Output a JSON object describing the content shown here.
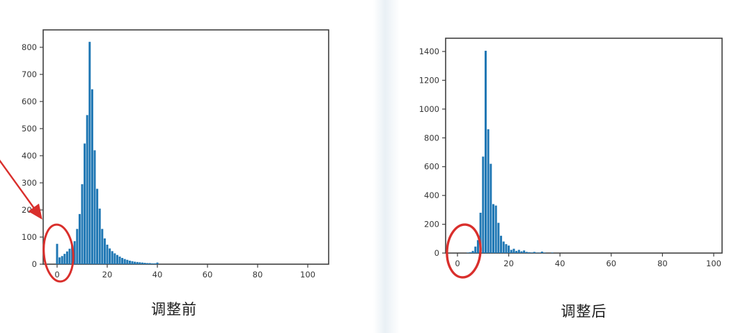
{
  "page": {
    "background": "#ffffff",
    "description": "Two histogram screenshots side by side comparing a distribution before and after adjustment, annotated in red"
  },
  "colors": {
    "bar": "#1f77b4",
    "axis": "#3f3f3f",
    "tick_label": "#353535",
    "title": "#1c1c1c",
    "annotation": "#d92f2c",
    "seam": "#e9f0f5"
  },
  "chart_data": [
    {
      "type": "bar",
      "title": "调整前",
      "xlabel": "",
      "ylabel": "",
      "x_ticks": [
        0,
        20,
        40,
        60,
        80,
        100
      ],
      "y_ticks": [
        0,
        100,
        200,
        300,
        400,
        500,
        600,
        700,
        800
      ],
      "xlim": [
        -5.5,
        108
      ],
      "ylim": [
        0,
        861
      ],
      "grid": false,
      "legend": "none",
      "x": [
        0,
        1,
        2,
        3,
        4,
        5,
        6,
        7,
        8,
        9,
        10,
        11,
        12,
        13,
        14,
        15,
        16,
        17,
        18,
        19,
        20,
        21,
        22,
        23,
        24,
        25,
        26,
        27,
        28,
        29,
        30,
        31,
        32,
        33,
        34,
        35,
        36,
        37,
        38,
        39,
        40
      ],
      "values": [
        75,
        25,
        30,
        38,
        47,
        57,
        70,
        85,
        130,
        185,
        295,
        445,
        550,
        820,
        645,
        420,
        278,
        205,
        130,
        95,
        72,
        58,
        48,
        40,
        34,
        28,
        23,
        19,
        16,
        13,
        11,
        9,
        8,
        7,
        6,
        5,
        4,
        4,
        3,
        3,
        6
      ],
      "annotations": [
        "red ellipse circling the small bars near x=0",
        "red arrow from upper left pointing at the circled region"
      ]
    },
    {
      "type": "bar",
      "title": "调整后",
      "xlabel": "",
      "ylabel": "",
      "x_ticks": [
        0,
        20,
        40,
        60,
        80,
        100
      ],
      "y_ticks": [
        0,
        200,
        400,
        600,
        800,
        1000,
        1200,
        1400
      ],
      "xlim": [
        -4.5,
        104
      ],
      "ylim": [
        0,
        1495
      ],
      "grid": false,
      "legend": "none",
      "x": [
        0,
        1,
        2,
        3,
        4,
        5,
        6,
        7,
        8,
        9,
        10,
        11,
        12,
        13,
        14,
        15,
        16,
        17,
        18,
        19,
        20,
        21,
        22,
        23,
        24,
        25,
        26,
        27,
        28,
        29,
        30,
        31,
        32,
        33,
        34,
        35,
        36,
        37,
        38,
        39,
        40
      ],
      "values": [
        0,
        0,
        0,
        0,
        2,
        6,
        15,
        45,
        90,
        280,
        670,
        1405,
        860,
        620,
        340,
        330,
        210,
        120,
        80,
        62,
        52,
        22,
        30,
        15,
        22,
        12,
        18,
        8,
        6,
        4,
        8,
        3,
        2,
        10,
        2,
        0,
        0,
        2,
        0,
        0,
        0
      ],
      "annotations": [
        "red ellipse circling the now-empty region near x=0"
      ]
    }
  ]
}
